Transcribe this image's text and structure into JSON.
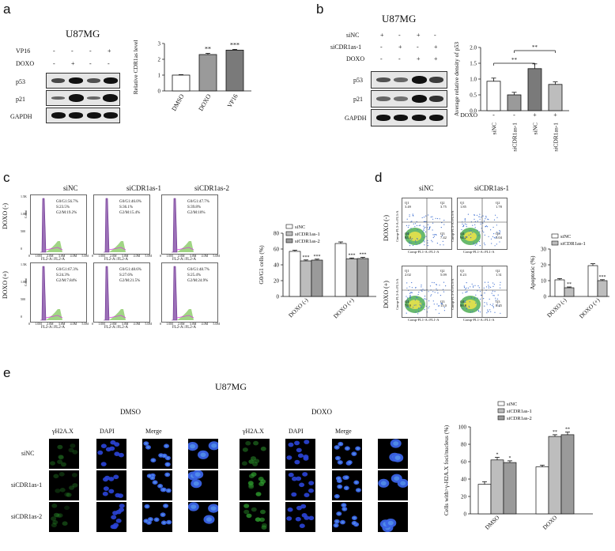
{
  "panel_a": {
    "letter": "a",
    "title": "U87MG",
    "row_labels": [
      "VP16",
      "DOXO",
      "p53",
      "p21",
      "GAPDH"
    ],
    "vp16_marks": [
      "-",
      "-",
      "-",
      "+"
    ],
    "doxo_marks": [
      "-",
      "+",
      "-",
      "-"
    ]
  },
  "panel_b": {
    "letter": "b",
    "title": "U87MG",
    "row_labels": [
      "siNC",
      "siCDR1as-1",
      "DOXO",
      "p53",
      "p21",
      "GAPDH"
    ],
    "sinc_marks": [
      "+",
      "-",
      "+",
      "-"
    ],
    "sicdr_marks": [
      "-",
      "+",
      "-",
      "+"
    ],
    "doxo_marks": [
      "-",
      "-",
      "+",
      "+"
    ],
    "doxo_row": "DOXO",
    "doxo_row_marks": [
      "-",
      "-",
      "+",
      "+"
    ]
  },
  "panel_c": {
    "letter": "c",
    "col_labels": [
      "siNC",
      "siCDR1as-1",
      "siCDR1as-2"
    ],
    "row_labels": [
      "DOXO (-)",
      "DOXO (+)"
    ],
    "count_label": "Count",
    "x_axis_label": "FL2-A::FL2-A",
    "x_ticks": [
      "0",
      "1.0M",
      "2.0M",
      "3.0M",
      "4.0M",
      "5.0M"
    ],
    "y_ticks_top": [
      "1.5K",
      "1.0K",
      "500",
      "0"
    ],
    "stats": [
      [
        "G0/G1:56.7%",
        "S:23.5%",
        "G2/M:19.2%"
      ],
      [
        "G0/G1:46.0%",
        "S:36.1%",
        "G2/M:15.4%"
      ],
      [
        "G0/G1:47.7%",
        "S:39.8%",
        "G2/M:10%"
      ],
      [
        "G0/G1:67.3%",
        "S:24.3%",
        "G2/M:7.84%"
      ],
      [
        "G0/G1:48.6%",
        "S:27.6%",
        "G2/M:21.5%"
      ],
      [
        "G0/G1:48.7%",
        "S:25.4%",
        "G2/M:24.9%"
      ]
    ]
  },
  "panel_d": {
    "letter": "d",
    "col_labels": [
      "siNC",
      "siCDR1as-1"
    ],
    "row_labels": [
      "DOXO (-)",
      "DOXO (+)"
    ],
    "x_axis_label": "Comp-FL1-A::FL1-A",
    "y_axis_label": "Comp-FL3-A::FL3-A",
    "quadrants": [
      {
        "Q1": "3.49",
        "Q2": "3.75",
        "Q3": "7.42",
        "Q4": "85.4"
      },
      {
        "Q1": "1.85",
        "Q2": "1.78",
        "Q3": "3.04",
        "Q4": "94.2"
      },
      {
        "Q1": "2.02",
        "Q2": "5.09",
        "Q3": "13.0",
        "Q4": "79.9"
      },
      {
        "Q1": "0.23",
        "Q2": "1.31",
        "Q3": "8.45",
        "Q4": "89.8"
      }
    ]
  },
  "panel_e": {
    "letter": "e",
    "title": "U87MG",
    "group_labels": [
      "DMSO",
      "DOXO"
    ],
    "stain_labels": [
      "γH2A.X",
      "DAPI",
      "Merge"
    ],
    "row_labels": [
      "siNC",
      "siCDR1as-1",
      "siCDR1as-2"
    ]
  },
  "colors": {
    "white_bar": "#ffffff",
    "light_gray_bar": "#bdbdbd",
    "mid_gray_bar": "#9a9a9a",
    "dark_gray_bar": "#7a7a7a",
    "hist_fill": "#9b6fb7",
    "hist_g2": "#8fce6e",
    "flow_fill": "#3f6fd0",
    "gfp": "#2fa02f",
    "dapi": "#2b45d8"
  },
  "chart_data": [
    {
      "id": "cdr1as-level",
      "type": "bar",
      "categories": [
        "DMSO",
        "DOXO",
        "VP16"
      ],
      "values": [
        1.0,
        2.3,
        2.58
      ],
      "errors": [
        0.03,
        0.08,
        0.05
      ],
      "sig": [
        "",
        "**",
        "***"
      ],
      "ylabel": "Relative CDR1as level",
      "ylim": [
        0,
        3
      ],
      "yticks": [
        "0",
        "1",
        "2",
        "3"
      ]
    },
    {
      "id": "p53-density",
      "type": "bar",
      "categories": [
        "siNC",
        "siCDR1as-1",
        "siNC",
        "siCDR1as-1"
      ],
      "values": [
        0.93,
        0.5,
        1.33,
        0.83
      ],
      "errors": [
        0.1,
        0.08,
        0.15,
        0.08
      ],
      "ylabel": "Average relative density of p53",
      "ylim": [
        0,
        2.0
      ],
      "yticks": [
        "0.0",
        "0.5",
        "1.0",
        "1.5",
        "2.0"
      ],
      "doxo_label": "DOXO",
      "doxo_marks": [
        "-",
        "-",
        "+",
        "+"
      ],
      "brackets": [
        "**",
        "**"
      ]
    },
    {
      "id": "g0g1",
      "type": "bar",
      "categories": [
        "DOXO (-)",
        "DOXO (+)"
      ],
      "series": [
        {
          "name": "siNC",
          "values": [
            57,
            67
          ],
          "errors": [
            1.5,
            2
          ]
        },
        {
          "name": "siCDR1as-1",
          "values": [
            45,
            47.5
          ],
          "errors": [
            1.2,
            1.2
          ]
        },
        {
          "name": "siCDR1as-2",
          "values": [
            46,
            48
          ],
          "errors": [
            1.2,
            1.5
          ]
        }
      ],
      "sig": [
        [
          "",
          "***",
          "***"
        ],
        [
          "",
          "***",
          "***"
        ]
      ],
      "ylabel": "G0/G1 cells (%)",
      "ylim": [
        0,
        80
      ],
      "yticks": [
        "0",
        "20",
        "40",
        "60",
        "80"
      ]
    },
    {
      "id": "apoptosis",
      "type": "bar",
      "categories": [
        "DOXO (-)",
        "DOXO (+)"
      ],
      "series": [
        {
          "name": "siNC",
          "values": [
            10.5,
            19.5
          ],
          "errors": [
            0.8,
            1.2
          ]
        },
        {
          "name": "siCDR1as-1",
          "values": [
            5.5,
            10
          ],
          "errors": [
            0.5,
            0.6
          ]
        }
      ],
      "sig": [
        [
          "",
          "**"
        ],
        [
          "",
          "***"
        ]
      ],
      "ylabel": "Apoptotic (%)",
      "ylim": [
        0,
        30
      ],
      "yticks": [
        "0",
        "10",
        "20",
        "30"
      ]
    },
    {
      "id": "h2ax",
      "type": "bar",
      "categories": [
        "DMSO",
        "DOXO"
      ],
      "series": [
        {
          "name": "siNC",
          "values": [
            34,
            54
          ],
          "errors": [
            3,
            2
          ]
        },
        {
          "name": "siCDR1as-1",
          "values": [
            62,
            89
          ],
          "errors": [
            3,
            2
          ]
        },
        {
          "name": "siCDR1as-2",
          "values": [
            59,
            91
          ],
          "errors": [
            2,
            3
          ]
        }
      ],
      "sig": [
        [
          "",
          "*",
          "*"
        ],
        [
          "",
          "**",
          "**"
        ]
      ],
      "ylabel": "Cells with>γ-H2A.X foci/nucleus (%)",
      "ylim": [
        0,
        100
      ],
      "yticks": [
        "0",
        "20",
        "40",
        "60",
        "80",
        "100"
      ]
    }
  ]
}
